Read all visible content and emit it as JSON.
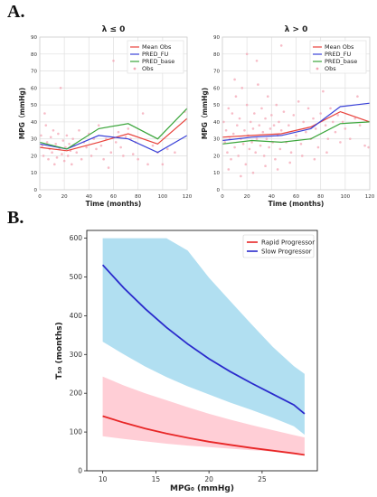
{
  "panels": {
    "a_label": "A.",
    "b_label": "B."
  },
  "chart_data": [
    {
      "type": "line",
      "title": "λ ≤ 0",
      "xlabel": "Time (months)",
      "ylabel": "MPG（mmHg)",
      "xlim": [
        0,
        120
      ],
      "ylim": [
        0,
        90
      ],
      "xticks": [
        "0",
        "20",
        "40",
        "60",
        "80",
        "100",
        "120"
      ],
      "yticks": [
        "0",
        "10",
        "20",
        "30",
        "40",
        "50",
        "60",
        "70",
        "80",
        "90"
      ],
      "grid": true,
      "legend": "top-right",
      "series": [
        {
          "name": "Mean Obs",
          "color": "#e8413a",
          "x": [
            0,
            22,
            48,
            72,
            96,
            120
          ],
          "y": [
            25,
            23,
            28,
            33,
            27,
            42
          ]
        },
        {
          "name": "PRED_FU",
          "color": "#3a42d8",
          "x": [
            0,
            22,
            48,
            72,
            96,
            120
          ],
          "y": [
            27,
            24,
            32,
            30,
            22,
            32
          ]
        },
        {
          "name": "PRED_base",
          "color": "#3aa53a",
          "x": [
            0,
            22,
            48,
            72,
            96,
            120
          ],
          "y": [
            28,
            24,
            36,
            39,
            30,
            48
          ]
        }
      ],
      "obs_name": "Obs",
      "obs_color": "#f4a6b4",
      "obs": [
        [
          1,
          32
        ],
        [
          2,
          26
        ],
        [
          3,
          20
        ],
        [
          4,
          45
        ],
        [
          5,
          38
        ],
        [
          6,
          28
        ],
        [
          7,
          18
        ],
        [
          8,
          24
        ],
        [
          9,
          31
        ],
        [
          10,
          22
        ],
        [
          11,
          35
        ],
        [
          12,
          15
        ],
        [
          13,
          27
        ],
        [
          14,
          19
        ],
        [
          15,
          33
        ],
        [
          16,
          24
        ],
        [
          17,
          60
        ],
        [
          18,
          21
        ],
        [
          19,
          29
        ],
        [
          20,
          17
        ],
        [
          21,
          25
        ],
        [
          22,
          32
        ],
        [
          23,
          20
        ],
        [
          24,
          27
        ],
        [
          25,
          23
        ],
        [
          26,
          15
        ],
        [
          27,
          30
        ],
        [
          28,
          26
        ],
        [
          30,
          22
        ],
        [
          32,
          35
        ],
        [
          34,
          18
        ],
        [
          36,
          28
        ],
        [
          38,
          25
        ],
        [
          40,
          33
        ],
        [
          42,
          20
        ],
        [
          44,
          30
        ],
        [
          46,
          24
        ],
        [
          48,
          38
        ],
        [
          50,
          26
        ],
        [
          52,
          18
        ],
        [
          54,
          30
        ],
        [
          56,
          13
        ],
        [
          58,
          22
        ],
        [
          60,
          76
        ],
        [
          62,
          28
        ],
        [
          64,
          34
        ],
        [
          66,
          25
        ],
        [
          68,
          20
        ],
        [
          70,
          31
        ],
        [
          72,
          36
        ],
        [
          74,
          30
        ],
        [
          76,
          21
        ],
        [
          78,
          28
        ],
        [
          80,
          18
        ],
        [
          84,
          45
        ],
        [
          88,
          15
        ],
        [
          92,
          26
        ],
        [
          96,
          22
        ],
        [
          100,
          15
        ],
        [
          104,
          24
        ],
        [
          110,
          22
        ],
        [
          118,
          46
        ]
      ]
    },
    {
      "type": "line",
      "title": "λ > 0",
      "xlabel": "Time (months)",
      "ylabel": "MPG（mmHg)",
      "xlim": [
        0,
        120
      ],
      "ylim": [
        0,
        90
      ],
      "xticks": [
        "0",
        "20",
        "40",
        "60",
        "80",
        "100",
        "120"
      ],
      "yticks": [
        "0",
        "10",
        "20",
        "30",
        "40",
        "50",
        "60",
        "70",
        "80",
        "90"
      ],
      "grid": true,
      "legend": "top-right",
      "series": [
        {
          "name": "Mean Obs",
          "color": "#e8413a",
          "x": [
            0,
            24,
            48,
            72,
            96,
            120
          ],
          "y": [
            31,
            32,
            33,
            37,
            46,
            40
          ]
        },
        {
          "name": "PRED_FU",
          "color": "#3a42d8",
          "x": [
            0,
            24,
            48,
            72,
            96,
            120
          ],
          "y": [
            29,
            31,
            32,
            36,
            49,
            51
          ]
        },
        {
          "name": "PRED_base",
          "color": "#3aa53a",
          "x": [
            0,
            24,
            48,
            72,
            96,
            120
          ],
          "y": [
            27,
            29,
            28,
            30,
            39,
            40
          ]
        }
      ],
      "obs_name": "Obs",
      "obs_color": "#f4a6b4",
      "obs": [
        [
          1,
          40
        ],
        [
          2,
          28
        ],
        [
          3,
          35
        ],
        [
          4,
          22
        ],
        [
          5,
          48
        ],
        [
          6,
          30
        ],
        [
          7,
          18
        ],
        [
          8,
          45
        ],
        [
          9,
          33
        ],
        [
          10,
          25
        ],
        [
          11,
          55
        ],
        [
          12,
          38
        ],
        [
          13,
          20
        ],
        [
          14,
          42
        ],
        [
          15,
          30
        ],
        [
          16,
          60
        ],
        [
          17,
          27
        ],
        [
          18,
          35
        ],
        [
          19,
          15
        ],
        [
          20,
          50
        ],
        [
          21,
          32
        ],
        [
          22,
          24
        ],
        [
          23,
          40
        ],
        [
          24,
          28
        ],
        [
          25,
          36
        ],
        [
          26,
          45
        ],
        [
          27,
          22
        ],
        [
          28,
          30
        ],
        [
          29,
          62
        ],
        [
          30,
          38
        ],
        [
          31,
          26
        ],
        [
          32,
          48
        ],
        [
          33,
          34
        ],
        [
          34,
          20
        ],
        [
          35,
          42
        ],
        [
          36,
          30
        ],
        [
          37,
          55
        ],
        [
          38,
          25
        ],
        [
          39,
          36
        ],
        [
          40,
          44
        ],
        [
          41,
          28
        ],
        [
          42,
          38
        ],
        [
          43,
          18
        ],
        [
          44,
          50
        ],
        [
          45,
          32
        ],
        [
          46,
          40
        ],
        [
          47,
          24
        ],
        [
          48,
          35
        ],
        [
          50,
          46
        ],
        [
          52,
          28
        ],
        [
          54,
          38
        ],
        [
          56,
          22
        ],
        [
          58,
          44
        ],
        [
          60,
          32
        ],
        [
          62,
          52
        ],
        [
          64,
          27
        ],
        [
          66,
          40
        ],
        [
          68,
          34
        ],
        [
          70,
          48
        ],
        [
          72,
          30
        ],
        [
          74,
          42
        ],
        [
          76,
          36
        ],
        [
          78,
          25
        ],
        [
          80,
          45
        ],
        [
          82,
          58
        ],
        [
          84,
          38
        ],
        [
          86,
          30
        ],
        [
          88,
          48
        ],
        [
          90,
          40
        ],
        [
          92,
          34
        ],
        [
          94,
          44
        ],
        [
          96,
          28
        ],
        [
          98,
          40
        ],
        [
          100,
          36
        ],
        [
          104,
          30
        ],
        [
          108,
          42
        ],
        [
          112,
          38
        ],
        [
          116,
          26
        ],
        [
          119,
          25
        ],
        [
          20,
          80
        ],
        [
          28,
          76
        ],
        [
          48,
          85
        ],
        [
          10,
          65
        ],
        [
          5,
          12
        ],
        [
          15,
          8
        ],
        [
          25,
          10
        ],
        [
          35,
          14
        ],
        [
          45,
          12
        ],
        [
          55,
          16
        ],
        [
          65,
          20
        ],
        [
          75,
          18
        ],
        [
          85,
          22
        ],
        [
          110,
          55
        ]
      ]
    },
    {
      "type": "area",
      "title": "",
      "xlabel": "MPG₀ (mmHg)",
      "ylabel": "T₅₀ (months)",
      "xlim": [
        8.5,
        30.2
      ],
      "ylim": [
        0,
        620
      ],
      "xticks": [
        10,
        15,
        20,
        25
      ],
      "yticks": [
        0,
        100,
        200,
        300,
        400,
        500,
        600
      ],
      "grid": false,
      "legend": "top-right",
      "x": [
        10,
        12,
        14,
        16,
        18,
        20,
        22,
        24,
        26,
        28,
        29
      ],
      "series": [
        {
          "name": "Rapid Progressor",
          "color": "#e82626",
          "band_color": "#ffc9d1",
          "values": [
            141,
            124,
            109,
            96,
            85,
            75,
            67,
            59,
            52,
            45,
            41
          ],
          "lower": [
            89,
            82,
            76,
            70,
            65,
            61,
            57,
            53,
            50,
            46,
            44
          ],
          "upper": [
            243,
            220,
            200,
            182,
            164,
            147,
            132,
            118,
            105,
            92,
            86
          ]
        },
        {
          "name": "Slow Progressor",
          "color": "#2a2acc",
          "band_color": "#a8dcef",
          "values": [
            531,
            471,
            418,
            370,
            327,
            289,
            256,
            226,
            198,
            170,
            147
          ],
          "lower": [
            333,
            300,
            269,
            242,
            218,
            197,
            176,
            157,
            137,
            115,
            93
          ],
          "upper": [
            600,
            600,
            600,
            600,
            568,
            498,
            438,
            378,
            320,
            270,
            250
          ]
        }
      ]
    }
  ]
}
